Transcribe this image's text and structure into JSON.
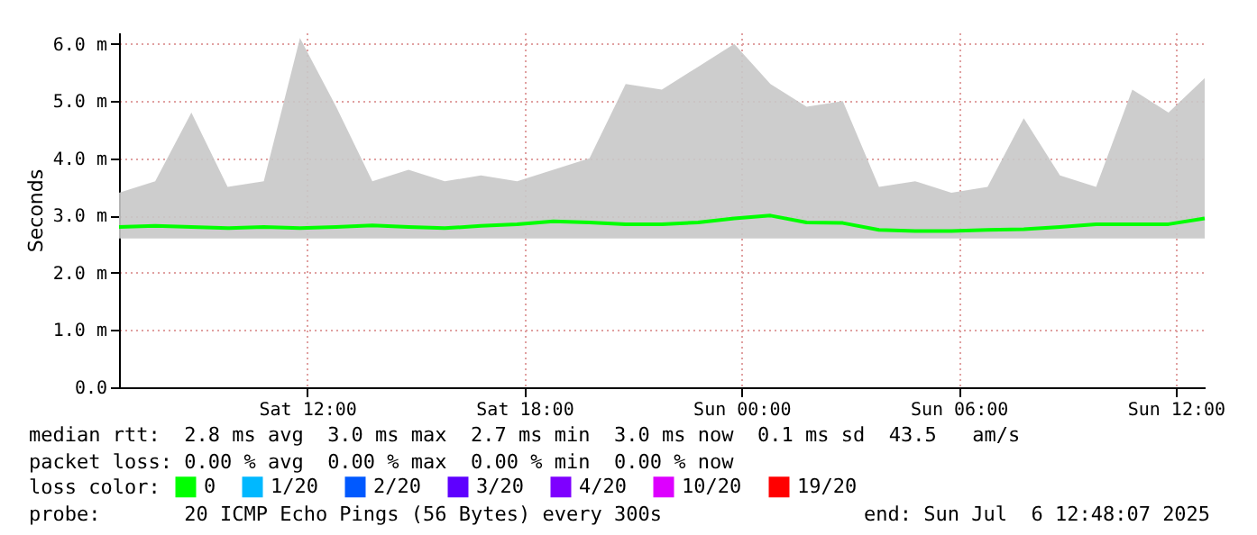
{
  "chart_data": {
    "type": "line",
    "ylabel": "Seconds",
    "legend_title": "loss color:",
    "legend": "bottom",
    "grid": true,
    "line_style": "solid",
    "marker": "none",
    "xlim": [
      "2025-07-05T06:48",
      "2025-07-06T12:48"
    ],
    "xticks": [
      {
        "value": "2025-07-05T12:00",
        "label": "Sat 12:00"
      },
      {
        "value": "2025-07-05T18:00",
        "label": "Sat 18:00"
      },
      {
        "value": "2025-07-06T00:00",
        "label": "Sun 00:00"
      },
      {
        "value": "2025-07-06T06:00",
        "label": "Sun 06:00"
      },
      {
        "value": "2025-07-06T12:00",
        "label": "Sun 12:00"
      }
    ],
    "ylim": [
      0,
      6.2
    ],
    "yticks": [
      {
        "value": 0,
        "label": "0.0"
      },
      {
        "value": 1,
        "label": "1.0 m"
      },
      {
        "value": 2,
        "label": "2.0 m"
      },
      {
        "value": 3,
        "label": "3.0 m"
      },
      {
        "value": 4,
        "label": "4.0 m"
      },
      {
        "value": 5,
        "label": "5.0 m"
      },
      {
        "value": 6,
        "label": "6.0 m"
      }
    ],
    "x": [
      "2025-07-05T06:48",
      "2025-07-05T07:48",
      "2025-07-05T08:48",
      "2025-07-05T09:48",
      "2025-07-05T10:48",
      "2025-07-05T11:48",
      "2025-07-05T12:48",
      "2025-07-05T13:48",
      "2025-07-05T14:48",
      "2025-07-05T15:48",
      "2025-07-05T16:48",
      "2025-07-05T17:48",
      "2025-07-05T18:48",
      "2025-07-05T19:48",
      "2025-07-05T20:48",
      "2025-07-05T21:48",
      "2025-07-05T22:48",
      "2025-07-05T23:48",
      "2025-07-06T00:48",
      "2025-07-06T01:48",
      "2025-07-06T02:48",
      "2025-07-06T03:48",
      "2025-07-06T04:48",
      "2025-07-06T05:48",
      "2025-07-06T06:48",
      "2025-07-06T07:48",
      "2025-07-06T08:48",
      "2025-07-06T09:48",
      "2025-07-06T10:48",
      "2025-07-06T11:48",
      "2025-07-06T12:48"
    ],
    "series": [
      {
        "name": "0",
        "color": "#00ff00",
        "values": [
          2.8,
          2.82,
          2.8,
          2.78,
          2.8,
          2.78,
          2.8,
          2.83,
          2.8,
          2.78,
          2.82,
          2.85,
          2.9,
          2.88,
          2.85,
          2.85,
          2.88,
          2.95,
          3.0,
          2.88,
          2.87,
          2.75,
          2.73,
          2.73,
          2.75,
          2.76,
          2.8,
          2.85,
          2.85,
          2.85,
          2.95
        ],
        "lower": [
          2.6,
          2.6,
          2.6,
          2.6,
          2.6,
          2.6,
          2.6,
          2.6,
          2.6,
          2.6,
          2.6,
          2.6,
          2.6,
          2.6,
          2.6,
          2.6,
          2.6,
          2.6,
          2.6,
          2.6,
          2.6,
          2.6,
          2.6,
          2.6,
          2.6,
          2.6,
          2.6,
          2.6,
          2.6,
          2.6,
          2.6
        ],
        "upper": [
          3.4,
          3.6,
          4.8,
          3.5,
          3.6,
          6.1,
          4.9,
          3.6,
          3.8,
          3.6,
          3.7,
          3.6,
          3.8,
          4.0,
          5.3,
          5.2,
          5.6,
          6.0,
          5.3,
          4.9,
          5.0,
          3.5,
          3.6,
          3.4,
          3.5,
          4.7,
          3.7,
          3.5,
          5.2,
          4.8,
          5.4
        ]
      },
      {
        "name": "1/20",
        "color": "#00b8ff",
        "values": [
          null,
          null,
          null,
          null,
          null,
          null,
          null,
          null,
          null,
          null,
          null,
          null,
          null,
          null,
          null,
          null,
          null,
          null,
          null,
          null,
          null,
          null,
          null,
          null,
          null,
          null,
          null,
          null,
          null,
          null,
          null
        ]
      },
      {
        "name": "2/20",
        "color": "#0059ff",
        "values": [
          null,
          null,
          null,
          null,
          null,
          null,
          null,
          null,
          null,
          null,
          null,
          null,
          null,
          null,
          null,
          null,
          null,
          null,
          null,
          null,
          null,
          null,
          null,
          null,
          null,
          null,
          null,
          null,
          null,
          null,
          null
        ]
      },
      {
        "name": "3/20",
        "color": "#5e00ff",
        "values": [
          null,
          null,
          null,
          null,
          null,
          null,
          null,
          null,
          null,
          null,
          null,
          null,
          null,
          null,
          null,
          null,
          null,
          null,
          null,
          null,
          null,
          null,
          null,
          null,
          null,
          null,
          null,
          null,
          null,
          null,
          null
        ]
      },
      {
        "name": "4/20",
        "color": "#7e00ff",
        "values": [
          null,
          null,
          null,
          null,
          null,
          null,
          null,
          null,
          null,
          null,
          null,
          null,
          null,
          null,
          null,
          null,
          null,
          null,
          null,
          null,
          null,
          null,
          null,
          null,
          null,
          null,
          null,
          null,
          null,
          null,
          null
        ]
      },
      {
        "name": "10/20",
        "color": "#dd00ff",
        "values": [
          null,
          null,
          null,
          null,
          null,
          null,
          null,
          null,
          null,
          null,
          null,
          null,
          null,
          null,
          null,
          null,
          null,
          null,
          null,
          null,
          null,
          null,
          null,
          null,
          null,
          null,
          null,
          null,
          null,
          null,
          null
        ]
      },
      {
        "name": "19/20",
        "color": "#ff0000",
        "values": [
          null,
          null,
          null,
          null,
          null,
          null,
          null,
          null,
          null,
          null,
          null,
          null,
          null,
          null,
          null,
          null,
          null,
          null,
          null,
          null,
          null,
          null,
          null,
          null,
          null,
          null,
          null,
          null,
          null,
          null,
          null
        ]
      }
    ],
    "annotations": [
      "median rtt:  2.8 ms avg  3.0 ms max  2.7 ms min  3.0 ms now  0.1 ms sd  43.5   am/s",
      "packet loss: 0.00 % avg  0.00 % max  0.00 % min  0.00 % now",
      "probe:       20 ICMP Echo Pings (56 Bytes) every 300s",
      "end: Sun Jul  6 12:48:07 2025"
    ]
  }
}
